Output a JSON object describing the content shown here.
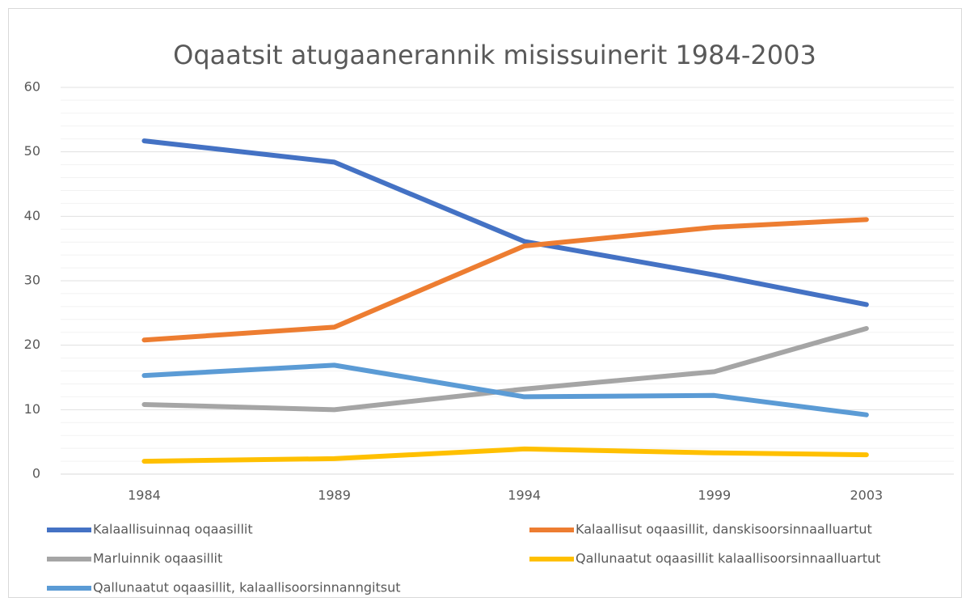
{
  "chart_data": {
    "type": "line",
    "title": "Oqaatsit atugaanerannik misissuinerit 1984-2003",
    "x": [
      1984,
      1989,
      1994,
      1999,
      2003
    ],
    "xlim": [
      1981.8,
      2005.3
    ],
    "xticks": [
      1984,
      1989,
      1994,
      1999,
      2003
    ],
    "ylim": [
      0,
      60
    ],
    "yticks": [
      0,
      10,
      20,
      30,
      40,
      50,
      60
    ],
    "minor_yticks": [
      2,
      4,
      6,
      8,
      12,
      14,
      16,
      18,
      22,
      24,
      26,
      28,
      32,
      34,
      36,
      38,
      42,
      44,
      46,
      48,
      52,
      54,
      56,
      58
    ],
    "grid": true,
    "series": [
      {
        "name": "Kalaallisuinnaq oqaasillit",
        "color": "#4472c4",
        "values": [
          51.7,
          48.4,
          36.1,
          30.9,
          26.3
        ]
      },
      {
        "name": "Kalaallisut oqaasillit, danskisoorsinnaalluartut",
        "color": "#ed7d31",
        "values": [
          20.8,
          22.8,
          35.4,
          38.3,
          39.5
        ]
      },
      {
        "name": "Marluinnik oqaasillit",
        "color": "#a5a5a5",
        "values": [
          10.8,
          10.0,
          13.2,
          15.9,
          22.6
        ]
      },
      {
        "name": "Qallunaatut oqaasillit kalaallisoorsinnaalluartut",
        "color": "#ffc000",
        "values": [
          2.0,
          2.4,
          3.9,
          3.3,
          3.0
        ]
      },
      {
        "name": "Qallunaatut oqaasillit, kalaallisoorsinnanngitsut",
        "color": "#5b9bd5",
        "values": [
          15.3,
          16.9,
          12.0,
          12.2,
          9.2
        ]
      }
    ]
  }
}
